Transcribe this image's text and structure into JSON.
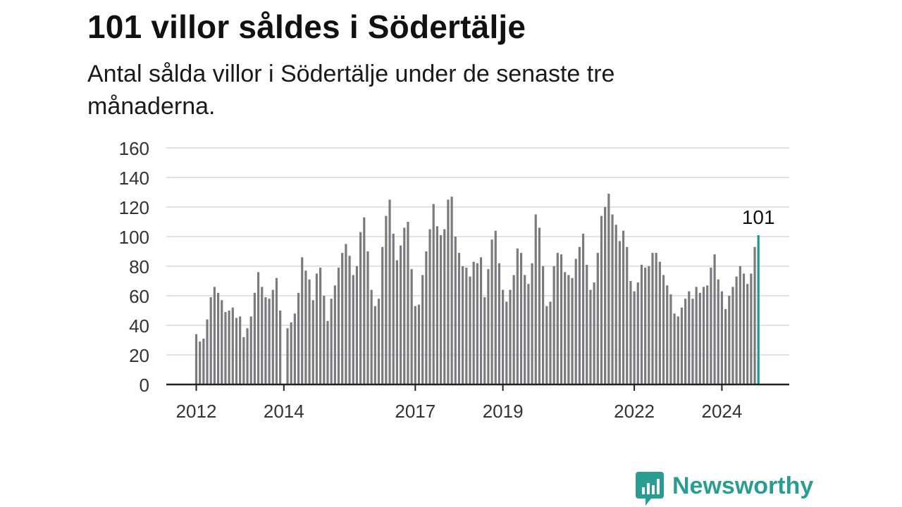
{
  "title": "101 villor såldes i Södertälje",
  "subtitle": "Antal sålda villor i Södertälje under de senaste tre månaderna.",
  "brand": "Newsworthy",
  "colors": {
    "bar": "#7a7a7f",
    "highlight": "#1a9a8f",
    "grid": "#d9d9d9",
    "axis": "#222222",
    "brand": "#2a9d93"
  },
  "chart_data": {
    "type": "bar",
    "ylim": [
      0,
      160
    ],
    "yticks": [
      0,
      20,
      40,
      60,
      80,
      100,
      120,
      140,
      160
    ],
    "xticks": [
      {
        "label": "2012",
        "index": 0
      },
      {
        "label": "2014",
        "index": 24
      },
      {
        "label": "2017",
        "index": 60
      },
      {
        "label": "2019",
        "index": 84
      },
      {
        "label": "2022",
        "index": 120
      },
      {
        "label": "2024",
        "index": 144
      }
    ],
    "values": [
      34,
      29,
      31,
      44,
      59,
      66,
      62,
      57,
      49,
      50,
      52,
      45,
      46,
      32,
      38,
      46,
      62,
      76,
      66,
      59,
      58,
      64,
      72,
      50,
      null,
      38,
      42,
      48,
      62,
      86,
      77,
      71,
      57,
      75,
      79,
      60,
      43,
      58,
      67,
      79,
      89,
      95,
      87,
      74,
      80,
      103,
      113,
      90,
      64,
      53,
      58,
      93,
      114,
      125,
      102,
      84,
      94,
      106,
      110,
      78,
      53,
      54,
      74,
      90,
      105,
      122,
      107,
      101,
      105,
      125,
      127,
      100,
      89,
      80,
      79,
      73,
      83,
      82,
      86,
      59,
      78,
      98,
      104,
      82,
      64,
      56,
      64,
      74,
      92,
      89,
      74,
      68,
      82,
      115,
      106,
      80,
      53,
      56,
      80,
      89,
      88,
      76,
      74,
      72,
      85,
      93,
      102,
      81,
      64,
      69,
      89,
      114,
      120,
      129,
      115,
      108,
      97,
      104,
      93,
      70,
      63,
      69,
      81,
      79,
      80,
      89,
      89,
      83,
      74,
      67,
      61,
      48,
      46,
      52,
      58,
      63,
      58,
      66,
      62,
      66,
      67,
      79,
      88,
      71,
      63,
      51,
      60,
      66,
      73,
      80,
      75,
      68,
      75,
      93,
      101
    ],
    "highlight_index": 154,
    "highlight_label": "101"
  }
}
